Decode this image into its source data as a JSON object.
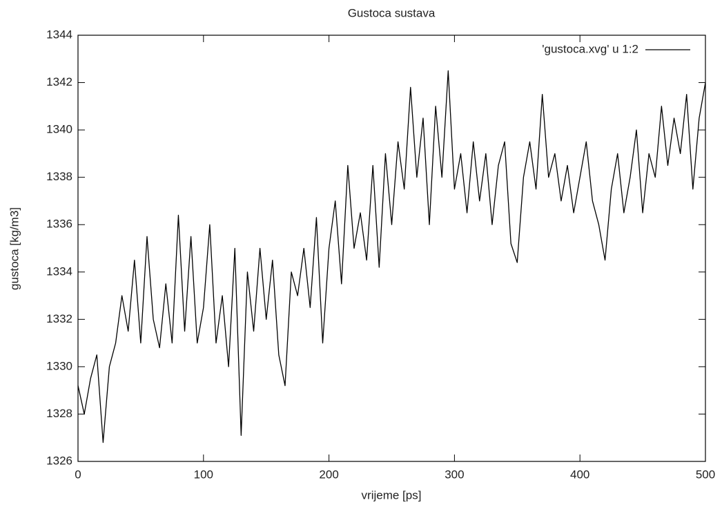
{
  "chart_data": {
    "type": "line",
    "title": "Gustoca sustava",
    "xlabel": "vrijeme [ps]",
    "ylabel": "gustoca [kg/m3]",
    "x": [
      0,
      5,
      10,
      15,
      20,
      25,
      30,
      35,
      40,
      45,
      50,
      55,
      60,
      65,
      70,
      75,
      80,
      85,
      90,
      95,
      100,
      105,
      110,
      115,
      120,
      125,
      130,
      135,
      140,
      145,
      150,
      155,
      160,
      165,
      170,
      175,
      180,
      185,
      190,
      195,
      200,
      205,
      210,
      215,
      220,
      225,
      230,
      235,
      240,
      245,
      250,
      255,
      260,
      265,
      270,
      275,
      280,
      285,
      290,
      295,
      300,
      305,
      310,
      315,
      320,
      325,
      330,
      335,
      340,
      345,
      350,
      355,
      360,
      365,
      370,
      375,
      380,
      385,
      390,
      395,
      400,
      405,
      410,
      415,
      420,
      425,
      430,
      435,
      440,
      445,
      450,
      455,
      460,
      465,
      470,
      475,
      480,
      485,
      490,
      495,
      500
    ],
    "series": [
      {
        "name": "'gustoca.xvg' u 1:2",
        "color": "#000000",
        "values": [
          1329.2,
          1328,
          1329.5,
          1330.5,
          1326.8,
          1330,
          1331,
          1333,
          1331.5,
          1334.5,
          1331,
          1335.5,
          1332,
          1330.8,
          1333.5,
          1331,
          1336.4,
          1331.5,
          1335.5,
          1331,
          1332.5,
          1336,
          1331,
          1333,
          1330,
          1335,
          1327.1,
          1334,
          1331.5,
          1335,
          1332,
          1334.5,
          1330.5,
          1329.2,
          1334,
          1333,
          1335,
          1332.5,
          1336.3,
          1331,
          1335,
          1337,
          1333.5,
          1338.5,
          1335,
          1336.5,
          1334.5,
          1338.5,
          1334.2,
          1339,
          1336,
          1339.5,
          1337.5,
          1341.8,
          1338,
          1340.5,
          1336,
          1341,
          1338,
          1342.5,
          1337.5,
          1339,
          1336.5,
          1339.5,
          1337,
          1339,
          1336,
          1338.5,
          1339.5,
          1335.2,
          1334.4,
          1338,
          1339.5,
          1337.5,
          1341.5,
          1338,
          1339,
          1337,
          1338.5,
          1336.5,
          1338,
          1339.5,
          1337,
          1336,
          1334.5,
          1337.5,
          1339,
          1336.5,
          1338,
          1340,
          1336.5,
          1339,
          1338,
          1341,
          1338.5,
          1340.5,
          1339,
          1341.5,
          1337.5,
          1340.5,
          1342
        ]
      }
    ],
    "xlim": [
      0,
      500
    ],
    "ylim": [
      1326,
      1344
    ],
    "xticks": [
      0,
      100,
      200,
      300,
      400,
      500
    ],
    "yticks": [
      1326,
      1328,
      1330,
      1332,
      1334,
      1336,
      1338,
      1340,
      1342,
      1344
    ],
    "legend": "top-right",
    "grid": false
  }
}
